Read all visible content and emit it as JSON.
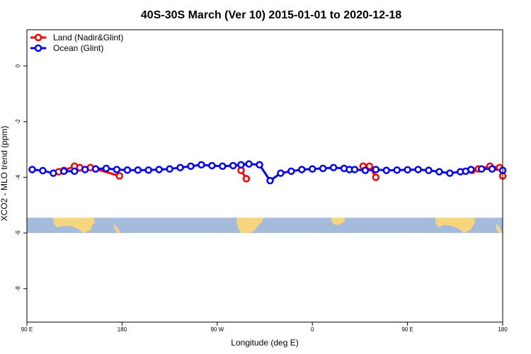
{
  "chart_data": {
    "type": "line",
    "title": "40S-30S March (Ver 10)   2015-01-01 to 2020-12-18",
    "xlabel": "Longitude (deg E)",
    "ylabel": "XCO2 - MLO trend (ppm)",
    "xlim": [
      90,
      540
    ],
    "ylim": [
      -9.2,
      1.3
    ],
    "x_ticks": [
      {
        "value": 90,
        "label": "90 E"
      },
      {
        "value": 180,
        "label": "180"
      },
      {
        "value": 270,
        "label": "90 W"
      },
      {
        "value": 360,
        "label": "0"
      },
      {
        "value": 450,
        "label": "90 E"
      },
      {
        "value": 540,
        "label": "180"
      }
    ],
    "y_ticks": [
      {
        "value": 0,
        "label": "0"
      },
      {
        "value": -2,
        "label": "-2"
      },
      {
        "value": -4,
        "label": "-4"
      },
      {
        "value": -6,
        "label": "-6"
      },
      {
        "value": -8,
        "label": "-8"
      }
    ],
    "legend_position": "top-left",
    "map_band": {
      "y_top": -5.45,
      "y_bottom": -6.0,
      "ocean_color": "#a4bbdc",
      "land_color": "#f5d57d"
    },
    "series": [
      {
        "name": "Land (Nadir&Glint)",
        "color": "#ff0000",
        "segments": [
          {
            "x": [
              120,
              125,
              135,
              140,
              150,
              155,
              177.5
            ],
            "y": [
              -3.8,
              -3.75,
              -3.6,
              -3.65,
              -3.65,
              -3.7,
              -3.95
            ]
          },
          {
            "x": [
              292.5,
              297.5
            ],
            "y": [
              -3.75,
              -4.05
            ]
          },
          {
            "x": [
              408,
              414,
              420
            ],
            "y": [
              -3.6,
              -3.6,
              -4.0
            ]
          },
          {
            "x": [
              511,
              517,
              528,
              537,
              540
            ],
            "y": [
              -3.75,
              -3.7,
              -3.6,
              -3.65,
              -3.95
            ]
          }
        ]
      },
      {
        "name": "Ocean (Glint)",
        "color": "#0000ff",
        "segments": [
          {
            "x": [
              95,
              105,
              115,
              125,
              135,
              145,
              155,
              165,
              175,
              185,
              195,
              205,
              215,
              225,
              235,
              245,
              255,
              265,
              275,
              285,
              292.5,
              300,
              310,
              320,
              330,
              340,
              350,
              360,
              370,
              380,
              390,
              395,
              400,
              410,
              420,
              430,
              440,
              450,
              460,
              470,
              480,
              490,
              500,
              505,
              510,
              520,
              530,
              540
            ],
            "y": [
              -3.72,
              -3.76,
              -3.85,
              -3.78,
              -3.78,
              -3.72,
              -3.7,
              -3.68,
              -3.72,
              -3.74,
              -3.74,
              -3.74,
              -3.72,
              -3.7,
              -3.65,
              -3.6,
              -3.55,
              -3.58,
              -3.6,
              -3.58,
              -3.55,
              -3.52,
              -3.55,
              -4.12,
              -3.85,
              -3.78,
              -3.72,
              -3.7,
              -3.68,
              -3.65,
              -3.68,
              -3.72,
              -3.72,
              -3.75,
              -3.72,
              -3.75,
              -3.74,
              -3.73,
              -3.72,
              -3.75,
              -3.8,
              -3.85,
              -3.8,
              -3.78,
              -3.72,
              -3.7,
              -3.7,
              -3.75
            ]
          }
        ]
      }
    ]
  }
}
